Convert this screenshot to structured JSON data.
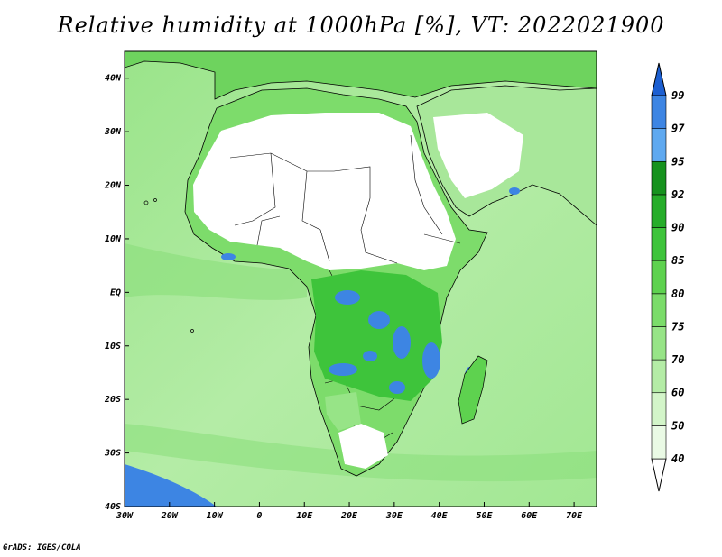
{
  "title": "Relative humidity at 1000hPa [%], VT: 2022021900",
  "credit": "GrADS: IGES/COLA",
  "map": {
    "lon_range": [
      -30,
      75
    ],
    "lat_range": [
      -40,
      45
    ],
    "lon_ticks": [
      {
        "value": -30,
        "label": "30W"
      },
      {
        "value": -20,
        "label": "20W"
      },
      {
        "value": -10,
        "label": "10W"
      },
      {
        "value": 0,
        "label": "0"
      },
      {
        "value": 10,
        "label": "10E"
      },
      {
        "value": 20,
        "label": "20E"
      },
      {
        "value": 30,
        "label": "30E"
      },
      {
        "value": 40,
        "label": "40E"
      },
      {
        "value": 50,
        "label": "50E"
      },
      {
        "value": 60,
        "label": "60E"
      },
      {
        "value": 70,
        "label": "70E"
      }
    ],
    "lat_ticks": [
      {
        "value": 40,
        "label": "40N"
      },
      {
        "value": 30,
        "label": "30N"
      },
      {
        "value": 20,
        "label": "20N"
      },
      {
        "value": 10,
        "label": "10N"
      },
      {
        "value": 0,
        "label": "EQ"
      },
      {
        "value": -10,
        "label": "10S"
      },
      {
        "value": -20,
        "label": "20S"
      },
      {
        "value": -30,
        "label": "30S"
      },
      {
        "value": -40,
        "label": "40S"
      }
    ]
  },
  "colorbar": {
    "levels": [
      40,
      50,
      60,
      70,
      75,
      80,
      85,
      90,
      92,
      95,
      97,
      99
    ],
    "colors": [
      "#ffffff",
      "#eafae5",
      "#d3f5c9",
      "#b4eca6",
      "#97e487",
      "#7bdc6a",
      "#5ed24f",
      "#3ec43b",
      "#26ad2a",
      "#16921e",
      "#5fa9f0",
      "#3d85e3",
      "#1c5fd1"
    ]
  },
  "colors": {
    "ocean_base": "#a9e99b",
    "land_moist": "#70d864",
    "land_dry": "#ffffff",
    "saturated": "#3d85e3",
    "border": "#000000"
  }
}
